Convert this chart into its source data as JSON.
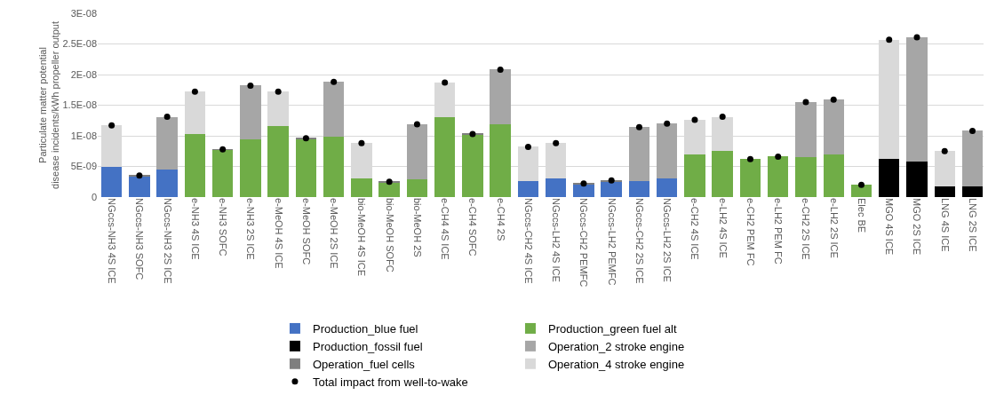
{
  "chart_data": {
    "type": "bar",
    "stacked": true,
    "ylabel": "Particulate matter potential\ndisease incidents/kWh propeller output",
    "categories": [
      "NGccs-NH3 4S ICE",
      "NGccs-NH3 SOFC",
      "NGccs-NH3 2S ICE",
      "e-NH3 4S ICE",
      "e-NH3 SOFC",
      "e-NH3 2S ICE",
      "e-MeOH 4S ICE",
      "e-MeOH SOFC",
      "e-MeOH 2S ICE",
      "bio-MeOH 4S ICE",
      "bio-MeOH SOFC",
      "bio-MeOH 2S",
      "e-CH4 4S ICE",
      "e-CH4 SOFC",
      "e-CH4 2S",
      "NGccs-CH2 4S ICE",
      "NGccs-LH2 4S ICE",
      "NGccs-CH2 PEMFC",
      "NGccs-LH2 PEMFC",
      "NGccs-CH2 2S ICE",
      "NGccs-LH2 2S ICE",
      "e-CH2 4S ICE",
      "e-LH2 4S ICE",
      "e-CH2 PEM FC",
      "e-LH2 PEM FC",
      "e-CH2 2S ICE",
      "e-LH2 2S ICE",
      "Elec BE",
      "MGO 4S ICE",
      "MGO 2S ICE",
      "LNG 4S ICE",
      "LNG 2S ICE"
    ],
    "series": [
      {
        "name": "Production_blue fuel",
        "color": "#4472c4",
        "values": [
          5e-09,
          3.4e-09,
          4.5e-09,
          null,
          null,
          null,
          null,
          null,
          null,
          null,
          null,
          null,
          null,
          null,
          null,
          2.6e-09,
          3.1e-09,
          2.1e-09,
          2.6e-09,
          2.6e-09,
          3e-09,
          null,
          null,
          null,
          null,
          null,
          null,
          null,
          null,
          null,
          null,
          null
        ]
      },
      {
        "name": "Production_green fuel alt",
        "color": "#70ad47",
        "values": [
          null,
          null,
          null,
          1.03e-08,
          7.7e-09,
          9.4e-09,
          1.16e-08,
          9.5e-09,
          9.8e-09,
          3.1e-09,
          2.4e-09,
          2.9e-09,
          1.3e-08,
          1.02e-08,
          1.19e-08,
          null,
          null,
          null,
          null,
          null,
          null,
          6.9e-09,
          7.5e-09,
          6.2e-09,
          6.6e-09,
          6.5e-09,
          7e-09,
          2e-09,
          null,
          null,
          null,
          null
        ]
      },
      {
        "name": "Production_fossil fuel",
        "color": "#000000",
        "values": [
          null,
          null,
          null,
          null,
          null,
          null,
          null,
          null,
          null,
          null,
          null,
          null,
          null,
          null,
          null,
          null,
          null,
          null,
          null,
          null,
          null,
          null,
          null,
          null,
          null,
          null,
          null,
          null,
          6.3e-09,
          5.8e-09,
          1.8e-09,
          1.7e-09
        ]
      },
      {
        "name": "Operation_2 stroke engine",
        "color": "#a6a6a6",
        "values": [
          null,
          null,
          8.6e-09,
          null,
          null,
          8.8e-09,
          null,
          null,
          9e-09,
          null,
          null,
          9e-09,
          null,
          null,
          8.9e-09,
          null,
          null,
          null,
          null,
          8.8e-09,
          9e-09,
          null,
          null,
          null,
          null,
          9e-09,
          8.9e-09,
          null,
          null,
          2.03e-08,
          null,
          9.1e-09
        ]
      },
      {
        "name": "Operation_fuel cells",
        "color": "#7f7f7f",
        "values": [
          null,
          1e-10,
          null,
          null,
          1e-10,
          null,
          null,
          1e-10,
          null,
          null,
          1e-10,
          null,
          null,
          1e-10,
          null,
          null,
          null,
          1e-10,
          1e-10,
          null,
          null,
          null,
          null,
          null,
          null,
          null,
          null,
          null,
          null,
          null,
          null,
          null
        ]
      },
      {
        "name": "Operation_4 stroke engine",
        "color": "#d9d9d9",
        "values": [
          6.7e-09,
          null,
          null,
          6.9e-09,
          null,
          null,
          5.6e-09,
          null,
          null,
          5.7e-09,
          null,
          null,
          5.7e-09,
          null,
          null,
          5.6e-09,
          5.7e-09,
          null,
          null,
          null,
          null,
          5.7e-09,
          5.6e-09,
          null,
          null,
          null,
          null,
          null,
          1.94e-08,
          null,
          5.7e-09,
          null
        ]
      },
      {
        "name": "Total impact from well-to-wake",
        "type": "scatter",
        "color": "#000000",
        "values": [
          1.17e-08,
          3.5e-09,
          1.31e-08,
          1.72e-08,
          7.8e-09,
          1.82e-08,
          1.72e-08,
          9.6e-09,
          1.88e-08,
          8.8e-09,
          2.5e-09,
          1.19e-08,
          1.87e-08,
          1.03e-08,
          2.08e-08,
          8.2e-09,
          8.8e-09,
          2.2e-09,
          2.7e-09,
          1.14e-08,
          1.2e-08,
          1.26e-08,
          1.31e-08,
          6.2e-09,
          6.6e-09,
          1.55e-08,
          1.59e-08,
          2e-09,
          2.57e-08,
          2.61e-08,
          7.5e-09,
          1.08e-08
        ]
      }
    ],
    "marker": "circle",
    "ylim": [
      0,
      3e-08
    ],
    "yticks": [
      0,
      {
        "value": 5e-09,
        "label": "5E-09"
      },
      {
        "value": 1e-08,
        "label": "1E-08"
      },
      {
        "value": 1.5e-08,
        "label": "1.5E-08"
      },
      {
        "value": 2e-08,
        "label": "2E-08"
      },
      {
        "value": 2.5e-08,
        "label": "2.5E-08"
      },
      {
        "value": 3e-08,
        "label": "3E-08"
      }
    ],
    "grid": "y",
    "legend": "bottom"
  }
}
